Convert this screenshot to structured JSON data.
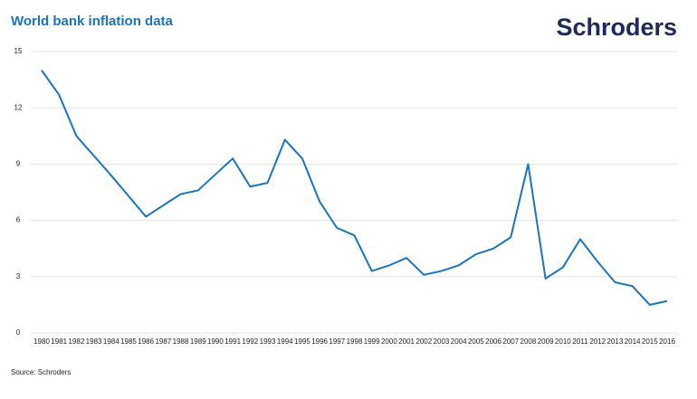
{
  "chart_data": {
    "type": "line",
    "title": "World bank inflation data",
    "brand": "Schroders",
    "source": "Source: Schroders",
    "x": [
      1980,
      1981,
      1982,
      1983,
      1984,
      1985,
      1986,
      1987,
      1988,
      1989,
      1990,
      1991,
      1992,
      1993,
      1994,
      1995,
      1996,
      1997,
      1998,
      1999,
      2000,
      2001,
      2002,
      2003,
      2004,
      2005,
      2006,
      2007,
      2008,
      2009,
      2010,
      2011,
      2012,
      2013,
      2014,
      2015,
      2016
    ],
    "series": [
      {
        "color": "#1a75bb",
        "values": [
          14,
          12.7,
          10.5,
          9.45,
          8.4,
          7.3,
          6.2,
          6.8,
          7.4,
          7.6,
          8.45,
          9.3,
          7.8,
          8.0,
          10.3,
          9.3,
          7.0,
          5.6,
          5.2,
          3.3,
          3.6,
          4.0,
          3.1,
          3.3,
          3.6,
          4.2,
          4.5,
          5.1,
          9.0,
          2.9,
          3.5,
          5.0,
          3.8,
          2.7,
          2.5,
          1.5,
          1.7
        ]
      }
    ],
    "xlim": [
      1980,
      2016
    ],
    "ylim": [
      0,
      15
    ],
    "yticks": [
      0,
      3,
      6,
      9,
      12,
      15
    ],
    "grid": true
  }
}
